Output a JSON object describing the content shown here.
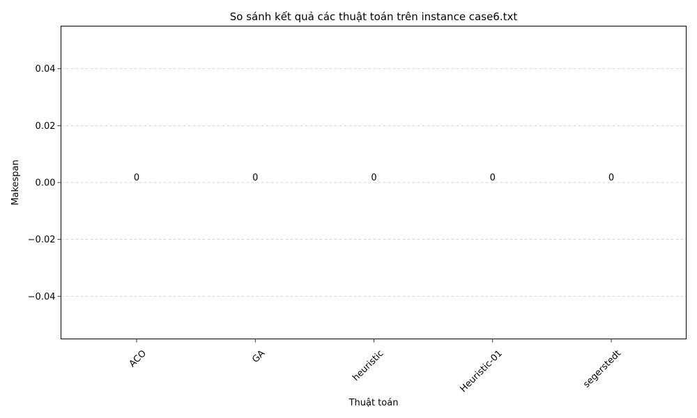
{
  "chart_data": {
    "type": "bar",
    "title": "So sánh kết quả các thuật toán trên instance case6.txt",
    "xlabel": "Thuật toán",
    "ylabel": "Makespan",
    "categories": [
      "ACO",
      "GA",
      "heuristic",
      "Heuristic-01",
      "segerstedt"
    ],
    "values": [
      0,
      0,
      0,
      0,
      0
    ],
    "data_labels": [
      "0",
      "0",
      "0",
      "0",
      "0"
    ],
    "ylim": [
      -0.055,
      0.055
    ],
    "yticks": [
      -0.04,
      -0.02,
      0.0,
      0.02,
      0.04
    ],
    "ytick_labels": [
      "−0.04",
      "−0.02",
      "0.00",
      "0.02",
      "0.04"
    ],
    "grid": "y-dashed",
    "xtick_rotation": 45
  }
}
